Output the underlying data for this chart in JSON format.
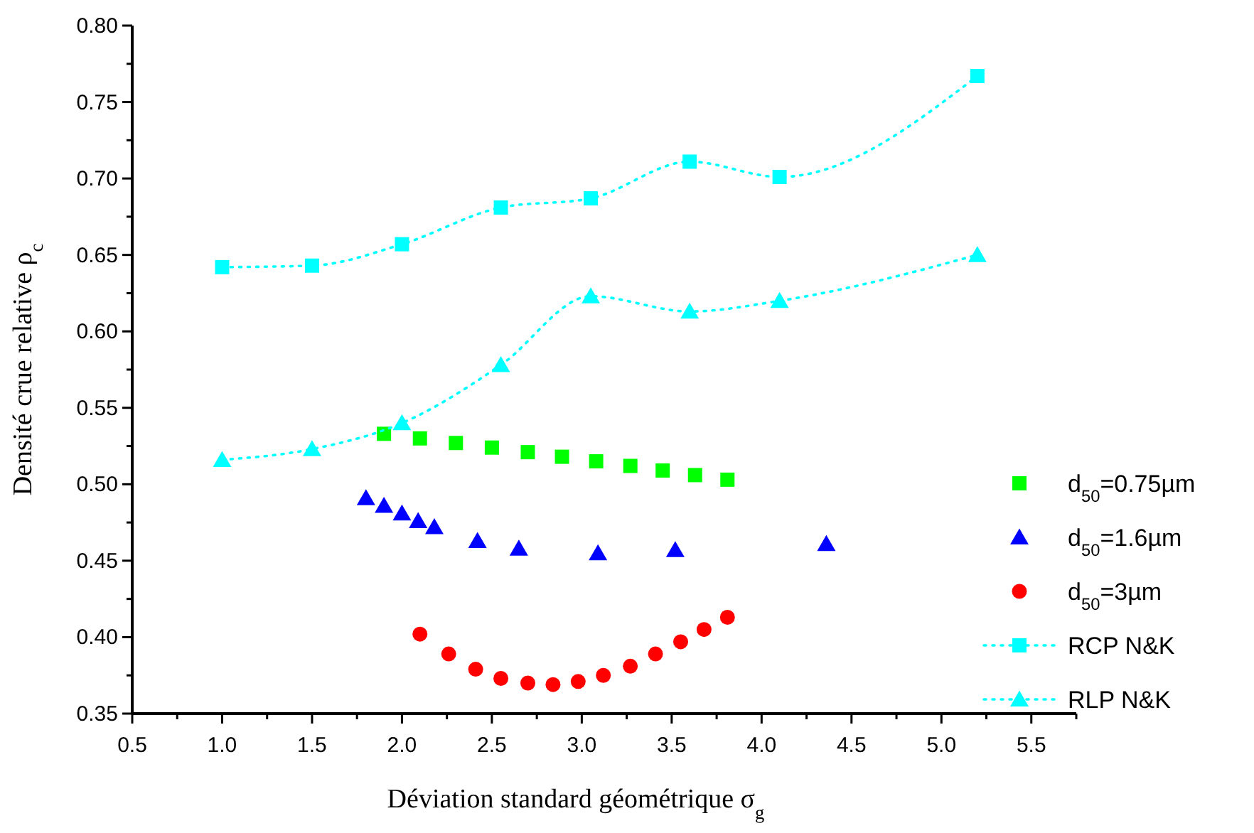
{
  "chart_data": {
    "type": "scatter",
    "xlabel": "Déviation standard géométrique σ$_{g}$",
    "ylabel": "Densité crue relative ρ$_{c}$",
    "xlim": [
      0.5,
      5.75
    ],
    "ylim": [
      0.35,
      0.8
    ],
    "xticks": [
      0.5,
      {
        "value": 0.75,
        "label": null
      },
      "1.0",
      {
        "value": 1.25,
        "label": null
      },
      1.5,
      {
        "value": 1.75,
        "label": null
      },
      "2.0",
      {
        "value": 2.25,
        "label": null
      },
      2.5,
      {
        "value": 2.75,
        "label": null
      },
      "3.0",
      {
        "value": 3.25,
        "label": null
      },
      3.5,
      {
        "value": 3.75,
        "label": null
      },
      "4.0",
      {
        "value": 4.25,
        "label": null
      },
      4.5,
      {
        "value": 4.75,
        "label": null
      },
      "5.0",
      {
        "value": 5.25,
        "label": null
      },
      5.5,
      {
        "value": 5.75,
        "label": null
      }
    ],
    "yticks": [
      {
        "value": 0.35,
        "label": "0.35"
      },
      {
        "value": 0.375,
        "label": null
      },
      {
        "value": 0.4,
        "label": "0.40"
      },
      {
        "value": 0.425,
        "label": null
      },
      {
        "value": 0.45,
        "label": "0.45"
      },
      {
        "value": 0.475,
        "label": null
      },
      {
        "value": 0.5,
        "label": "0.50"
      },
      {
        "value": 0.525,
        "label": null
      },
      {
        "value": 0.55,
        "label": "0.55"
      },
      {
        "value": 0.575,
        "label": null
      },
      {
        "value": 0.6,
        "label": "0.60"
      },
      {
        "value": 0.625,
        "label": null
      },
      {
        "value": 0.65,
        "label": "0.65"
      },
      {
        "value": 0.675,
        "label": null
      },
      {
        "value": 0.7,
        "label": "0.70"
      },
      {
        "value": 0.725,
        "label": null
      },
      {
        "value": 0.75,
        "label": "0.75"
      },
      {
        "value": 0.775,
        "label": null
      },
      {
        "value": 0.8,
        "label": "0.80"
      }
    ],
    "grid": false,
    "legend": "right",
    "line_style": "dotted",
    "series": [
      {
        "name": "d$_{50}$=0.75µm",
        "marker": "square",
        "color": "#00ff00",
        "x": [
          1.9,
          2.1,
          2.3,
          2.5,
          2.7,
          2.89,
          3.08,
          3.27,
          3.45,
          3.63,
          3.81
        ],
        "values": [
          0.533,
          0.53,
          0.527,
          0.524,
          0.521,
          0.518,
          0.515,
          0.512,
          0.509,
          0.506,
          0.503
        ]
      },
      {
        "name": "d$_{50}$=1.6µm",
        "marker": "triangle",
        "color": "#0000ff",
        "x": [
          1.8,
          1.9,
          2.0,
          2.09,
          2.18,
          2.42,
          2.65,
          3.09,
          3.52,
          4.36
        ],
        "values": [
          0.491,
          0.486,
          0.481,
          0.476,
          0.472,
          0.463,
          0.458,
          0.455,
          0.457,
          0.461
        ]
      },
      {
        "name": "d$_{50}$=3µm",
        "marker": "circle",
        "color": "#ff0000",
        "x": [
          2.1,
          2.26,
          2.41,
          2.55,
          2.7,
          2.84,
          2.98,
          3.12,
          3.27,
          3.41,
          3.55,
          3.68,
          3.81
        ],
        "values": [
          0.402,
          0.389,
          0.379,
          0.373,
          0.37,
          0.369,
          0.371,
          0.375,
          0.381,
          0.389,
          0.397,
          0.405,
          0.413
        ]
      },
      {
        "name": "RCP N&K",
        "type": "line",
        "marker": "square",
        "color": "#00ffff",
        "x": [
          1.0,
          1.5,
          2.0,
          2.55,
          3.05,
          3.6,
          4.1,
          5.2
        ],
        "values": [
          0.642,
          0.643,
          0.657,
          0.681,
          0.687,
          0.711,
          0.701,
          0.767
        ]
      },
      {
        "name": "RLP N&K",
        "type": "line",
        "marker": "triangle",
        "color": "#00ffff",
        "x": [
          1.0,
          1.5,
          2.0,
          2.55,
          3.05,
          3.6,
          4.1,
          5.2
        ],
        "values": [
          0.516,
          0.523,
          0.54,
          0.578,
          0.623,
          0.613,
          0.62,
          0.65
        ]
      }
    ]
  }
}
